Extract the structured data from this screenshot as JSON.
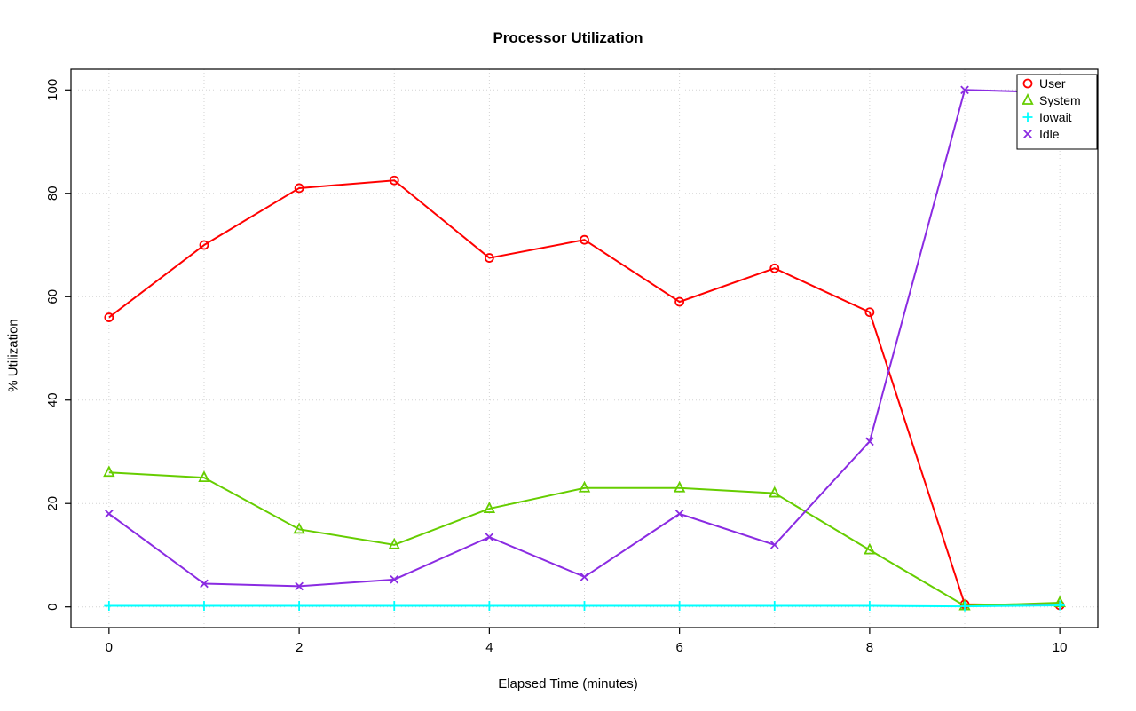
{
  "chart_data": {
    "type": "line",
    "title": "Processor Utilization",
    "xlabel": "Elapsed Time (minutes)",
    "ylabel": "% Utilization",
    "x": [
      0,
      1,
      2,
      3,
      4,
      5,
      6,
      7,
      8,
      9,
      10
    ],
    "xlim": [
      0,
      10
    ],
    "ylim": [
      0,
      100
    ],
    "xticks": [
      0,
      2,
      4,
      6,
      8,
      10
    ],
    "yticks": [
      0,
      20,
      40,
      60,
      80,
      100
    ],
    "grid_x": [
      0,
      1,
      2,
      3,
      4,
      5,
      6,
      7,
      8,
      9,
      10
    ],
    "grid_y": [
      0,
      20,
      40,
      60,
      80,
      100
    ],
    "grid_style": "dotted",
    "grid_color": "#d3d3d3",
    "legend_position": "top-right",
    "series": [
      {
        "name": "User",
        "color": "#ff0000",
        "marker": "circle",
        "values": [
          56,
          70,
          81,
          82.5,
          67.5,
          71,
          59,
          65.5,
          57,
          0.5,
          0.3
        ]
      },
      {
        "name": "System",
        "color": "#66cd00",
        "marker": "triangle",
        "values": [
          26,
          25,
          15,
          12,
          19,
          23,
          23,
          22,
          11,
          0.2,
          0.8
        ]
      },
      {
        "name": "Iowait",
        "color": "#00ffff",
        "marker": "plus",
        "values": [
          0.2,
          0.2,
          0.2,
          0.2,
          0.2,
          0.2,
          0.2,
          0.2,
          0.2,
          0.1,
          0.3
        ]
      },
      {
        "name": "Idle",
        "color": "#8a2be2",
        "marker": "x",
        "values": [
          18,
          4.5,
          4,
          5.3,
          13.5,
          5.8,
          18,
          12,
          32,
          100,
          99.5
        ]
      }
    ]
  }
}
